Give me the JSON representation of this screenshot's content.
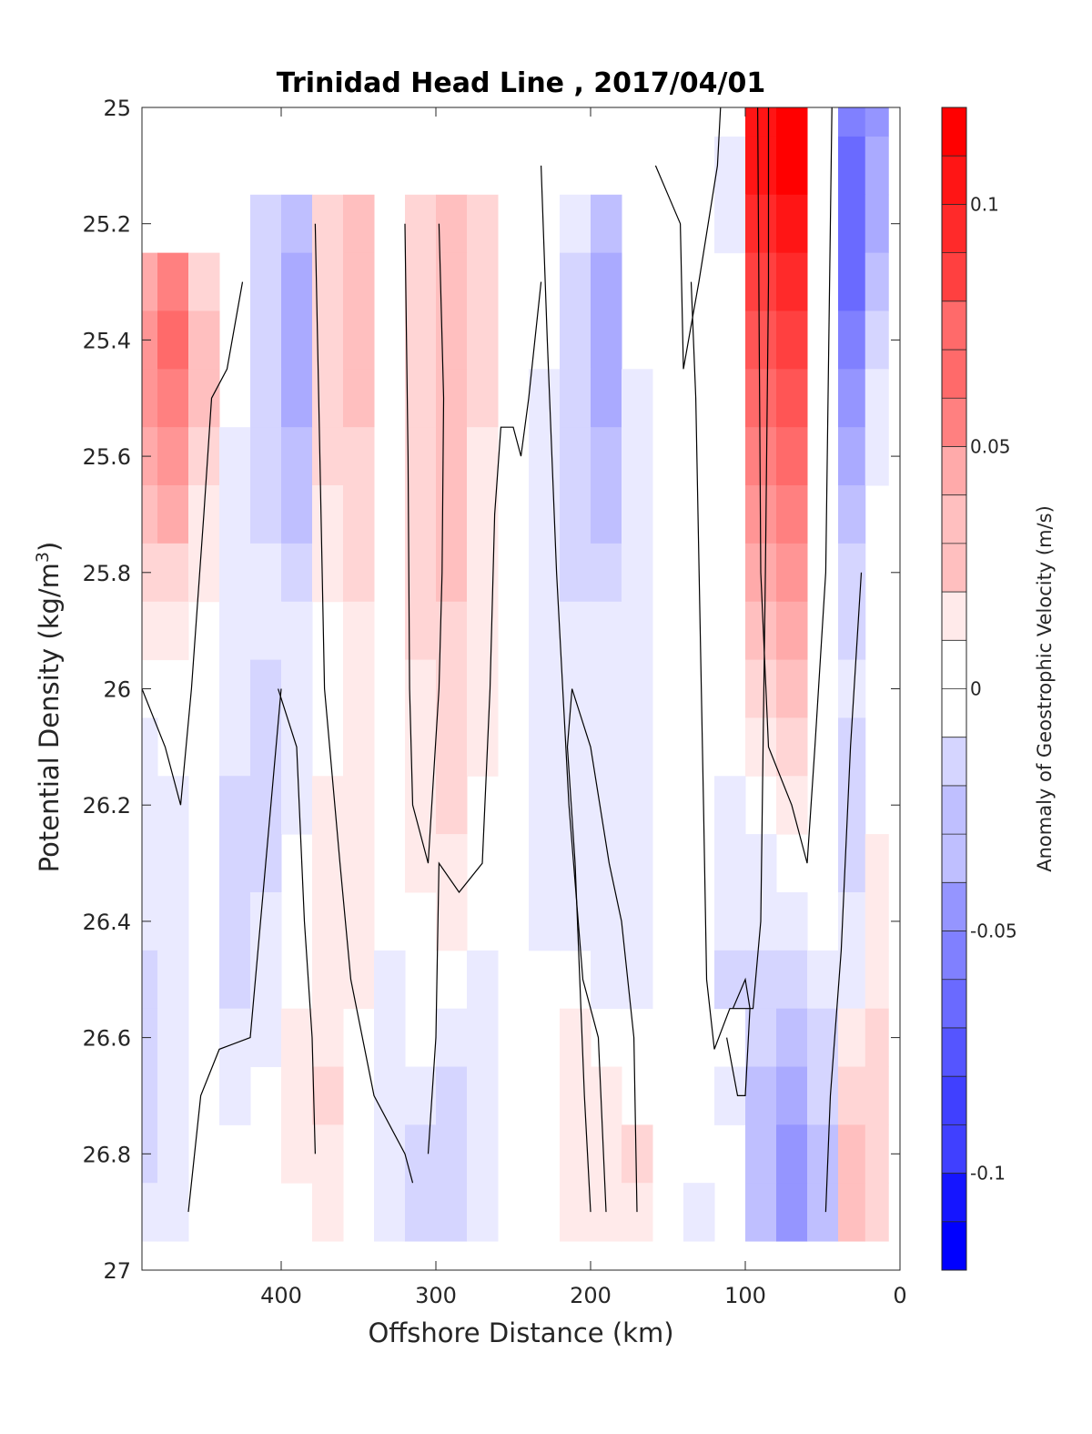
{
  "chart_data": {
    "type": "heatmap",
    "title": "Trinidad Head Line , 2017/04/01",
    "xlabel": "Offshore Distance (km)",
    "ylabel_main": "Potential Density (kg/m",
    "ylabel_sup": "3",
    "ylabel_tail": ")",
    "xlim": [
      490,
      0
    ],
    "ylim": [
      25,
      27
    ],
    "x_ticks": [
      "400",
      "300",
      "200",
      "100",
      "0"
    ],
    "x_tick_values": [
      400,
      300,
      200,
      100,
      0
    ],
    "y_ticks": [
      "25",
      "25.2",
      "25.4",
      "25.6",
      "25.8",
      "26",
      "26.2",
      "26.4",
      "26.6",
      "26.8",
      "27"
    ],
    "y_tick_values": [
      25,
      25.2,
      25.4,
      25.6,
      25.8,
      26,
      26.2,
      26.4,
      26.6,
      26.8,
      27
    ],
    "colorbar": {
      "label": "Anomaly of Geostrophic Velocity (m/s)",
      "range": [
        -0.12,
        0.12
      ],
      "step": 0.01,
      "ticks": [
        "0.1",
        "0.05",
        "0",
        "-0.05",
        "-0.1"
      ],
      "tick_values": [
        0.1,
        0.05,
        0,
        -0.05,
        -0.1
      ],
      "colormap": "blue-white-red"
    },
    "grid_x": [
      490,
      470,
      450,
      430,
      410,
      390,
      370,
      350,
      330,
      310,
      290,
      270,
      250,
      230,
      210,
      190,
      170,
      150,
      130,
      110,
      90,
      70,
      50,
      30,
      15
    ],
    "grid_y": [
      25.0,
      25.1,
      25.2,
      25.3,
      25.4,
      25.5,
      25.6,
      25.7,
      25.8,
      25.9,
      26.0,
      26.1,
      26.2,
      26.3,
      26.4,
      26.5,
      26.6,
      26.7,
      26.8,
      26.9
    ],
    "values": [
      [
        null,
        null,
        null,
        null,
        null,
        null,
        null,
        null,
        null,
        null,
        null,
        null,
        null,
        null,
        null,
        null,
        null,
        null,
        null,
        0.0,
        0.11,
        0.12,
        0.0,
        -0.06,
        -0.05
      ],
      [
        null,
        null,
        null,
        null,
        null,
        null,
        null,
        null,
        null,
        null,
        null,
        null,
        null,
        null,
        null,
        null,
        null,
        null,
        null,
        -0.01,
        0.11,
        0.12,
        0.0,
        -0.07,
        -0.04
      ],
      [
        null,
        null,
        null,
        null,
        -0.02,
        -0.03,
        0.02,
        0.03,
        0.0,
        0.02,
        0.03,
        0.02,
        0.0,
        0.0,
        -0.01,
        -0.03,
        0.0,
        0.0,
        0.0,
        -0.01,
        0.1,
        0.11,
        0.0,
        -0.07,
        -0.04
      ],
      [
        0.04,
        0.06,
        0.02,
        0.0,
        -0.02,
        -0.04,
        0.02,
        0.03,
        0.0,
        0.02,
        0.03,
        0.02,
        0.0,
        0.0,
        -0.02,
        -0.04,
        0.0,
        0.0,
        0.0,
        0.0,
        0.09,
        0.1,
        0.0,
        -0.07,
        -0.03
      ],
      [
        0.05,
        0.07,
        0.03,
        0.0,
        -0.02,
        -0.04,
        0.02,
        0.03,
        0.0,
        0.02,
        0.03,
        0.02,
        0.0,
        0.0,
        -0.02,
        -0.04,
        0.0,
        0.0,
        0.0,
        0.0,
        0.08,
        0.09,
        0.0,
        -0.06,
        -0.02
      ],
      [
        0.05,
        0.06,
        0.03,
        0.0,
        -0.02,
        -0.04,
        0.02,
        0.03,
        0.0,
        0.02,
        0.03,
        0.02,
        0.0,
        -0.01,
        -0.02,
        -0.04,
        -0.01,
        0.0,
        0.0,
        0.0,
        0.07,
        0.08,
        0.0,
        -0.05,
        -0.01
      ],
      [
        0.04,
        0.05,
        0.02,
        -0.01,
        -0.02,
        -0.03,
        0.02,
        0.02,
        0.0,
        0.02,
        0.03,
        0.01,
        0.0,
        -0.01,
        -0.02,
        -0.03,
        -0.01,
        0.0,
        0.0,
        0.0,
        0.06,
        0.07,
        0.0,
        -0.04,
        -0.01
      ],
      [
        0.03,
        0.04,
        0.01,
        -0.01,
        -0.02,
        -0.03,
        0.01,
        0.02,
        0.0,
        0.02,
        0.03,
        0.01,
        0.0,
        -0.01,
        -0.02,
        -0.03,
        -0.01,
        0.0,
        0.0,
        0.0,
        0.05,
        0.06,
        0.0,
        -0.03,
        0.0
      ],
      [
        0.02,
        0.02,
        0.01,
        -0.01,
        -0.01,
        -0.02,
        0.01,
        0.02,
        0.0,
        0.02,
        0.03,
        0.01,
        0.0,
        -0.01,
        -0.02,
        -0.02,
        -0.01,
        0.0,
        0.0,
        0.0,
        0.04,
        0.05,
        0.0,
        -0.02,
        0.0
      ],
      [
        0.01,
        0.01,
        0.0,
        -0.01,
        -0.01,
        -0.01,
        0.0,
        0.01,
        0.0,
        0.02,
        0.02,
        0.01,
        0.0,
        -0.01,
        -0.01,
        -0.01,
        -0.01,
        0.0,
        0.0,
        0.0,
        0.03,
        0.04,
        0.0,
        -0.02,
        0.0
      ],
      [
        0.0,
        0.0,
        0.0,
        -0.01,
        -0.02,
        -0.01,
        0.0,
        0.01,
        0.0,
        0.01,
        0.02,
        0.01,
        0.0,
        -0.01,
        -0.01,
        -0.01,
        -0.01,
        0.0,
        0.0,
        0.0,
        0.02,
        0.03,
        0.0,
        -0.01,
        0.0
      ],
      [
        -0.01,
        0.0,
        0.0,
        -0.01,
        -0.02,
        -0.01,
        0.0,
        0.01,
        0.0,
        0.01,
        0.02,
        0.01,
        0.0,
        -0.01,
        -0.01,
        -0.01,
        -0.01,
        0.0,
        0.0,
        0.0,
        0.01,
        0.02,
        0.0,
        -0.02,
        0.0
      ],
      [
        -0.01,
        -0.01,
        0.0,
        -0.02,
        -0.02,
        -0.01,
        0.01,
        0.01,
        0.0,
        0.01,
        0.02,
        0.0,
        0.0,
        -0.01,
        -0.01,
        -0.01,
        -0.01,
        0.0,
        0.0,
        -0.01,
        0.0,
        0.01,
        0.0,
        -0.02,
        0.0
      ],
      [
        -0.01,
        -0.01,
        0.0,
        -0.02,
        -0.02,
        0.0,
        0.01,
        0.01,
        0.0,
        0.01,
        0.01,
        0.0,
        0.0,
        -0.01,
        -0.01,
        -0.01,
        -0.01,
        0.0,
        0.0,
        -0.01,
        -0.01,
        0.0,
        0.0,
        -0.02,
        0.01
      ],
      [
        -0.01,
        -0.01,
        0.0,
        -0.02,
        -0.01,
        0.0,
        0.01,
        0.01,
        0.0,
        0.0,
        0.01,
        0.0,
        0.0,
        -0.01,
        -0.01,
        -0.01,
        -0.01,
        0.0,
        0.0,
        -0.01,
        -0.01,
        -0.01,
        0.0,
        -0.01,
        0.01
      ],
      [
        -0.02,
        -0.01,
        0.0,
        -0.02,
        -0.01,
        0.0,
        0.01,
        0.01,
        -0.01,
        0.0,
        0.0,
        -0.01,
        0.0,
        0.0,
        0.0,
        -0.01,
        -0.01,
        0.0,
        0.0,
        -0.02,
        -0.02,
        -0.02,
        -0.01,
        -0.01,
        0.01
      ],
      [
        -0.02,
        -0.01,
        0.0,
        -0.01,
        -0.01,
        0.01,
        0.01,
        0.0,
        -0.01,
        0.0,
        -0.01,
        -0.01,
        0.0,
        0.0,
        0.01,
        0.0,
        0.0,
        0.0,
        0.0,
        0.0,
        -0.02,
        -0.03,
        -0.02,
        0.01,
        0.02
      ],
      [
        -0.02,
        -0.01,
        0.0,
        -0.01,
        0.0,
        0.01,
        0.02,
        0.0,
        -0.01,
        -0.01,
        -0.02,
        -0.01,
        0.0,
        0.0,
        0.01,
        0.01,
        0.0,
        0.0,
        0.0,
        -0.01,
        -0.03,
        -0.04,
        -0.02,
        0.02,
        0.02
      ],
      [
        -0.02,
        -0.01,
        0.0,
        0.0,
        0.0,
        0.01,
        0.01,
        0.0,
        -0.01,
        -0.02,
        -0.02,
        -0.01,
        0.0,
        0.0,
        0.01,
        0.01,
        0.02,
        0.0,
        0.0,
        0.0,
        -0.03,
        -0.05,
        -0.03,
        0.03,
        0.02
      ],
      [
        -0.01,
        -0.01,
        0.0,
        0.0,
        0.0,
        0.0,
        0.01,
        0.0,
        -0.01,
        -0.02,
        -0.02,
        -0.01,
        0.0,
        0.0,
        0.01,
        0.01,
        0.01,
        0.0,
        -0.01,
        0.0,
        -0.03,
        -0.05,
        -0.03,
        0.03,
        0.02
      ]
    ]
  }
}
